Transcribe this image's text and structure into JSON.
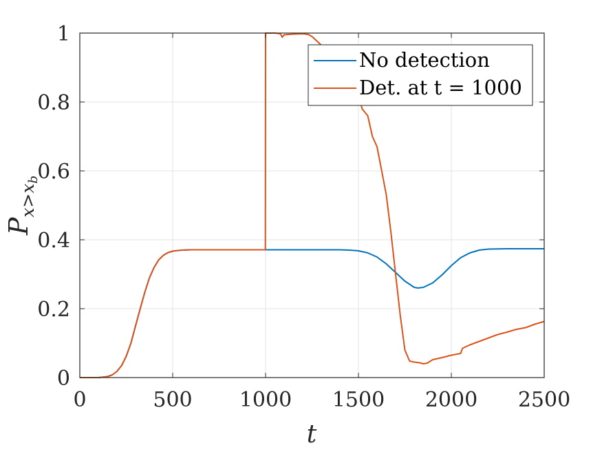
{
  "chart_data": {
    "type": "line",
    "title": "",
    "xlabel": "t",
    "ylabel": {
      "base": "P",
      "subscript": "x>x",
      "subsub": "b"
    },
    "xlim": [
      0,
      2500
    ],
    "ylim": [
      0,
      1
    ],
    "xticks": [
      0,
      500,
      1000,
      1500,
      2000,
      2500
    ],
    "yticks": [
      0,
      0.2,
      0.4,
      0.6,
      0.8,
      1
    ],
    "xtick_labels": [
      "0",
      "500",
      "1000",
      "1500",
      "2000",
      "2500"
    ],
    "ytick_labels": [
      "0",
      "0.2",
      "0.4",
      "0.6",
      "0.8",
      "1"
    ],
    "grid": true,
    "legend_position": "top-right",
    "series": [
      {
        "name": "No detection",
        "color": "#0072BD",
        "x": [
          0,
          100,
          150,
          175,
          200,
          225,
          250,
          275,
          300,
          325,
          350,
          375,
          400,
          425,
          450,
          475,
          500,
          550,
          600,
          650,
          700,
          800,
          1000,
          1200,
          1400,
          1450,
          1500,
          1550,
          1600,
          1650,
          1700,
          1750,
          1800,
          1820,
          1850,
          1900,
          1950,
          2000,
          2050,
          2100,
          2150,
          2200,
          2300,
          2500
        ],
        "y": [
          0,
          0,
          0.003,
          0.008,
          0.018,
          0.035,
          0.062,
          0.1,
          0.15,
          0.2,
          0.248,
          0.29,
          0.32,
          0.342,
          0.355,
          0.363,
          0.367,
          0.37,
          0.371,
          0.371,
          0.371,
          0.371,
          0.371,
          0.371,
          0.371,
          0.37,
          0.368,
          0.362,
          0.35,
          0.33,
          0.305,
          0.28,
          0.262,
          0.26,
          0.262,
          0.275,
          0.298,
          0.325,
          0.348,
          0.362,
          0.37,
          0.373,
          0.374,
          0.374
        ]
      },
      {
        "name": "Det. at t = 1000",
        "color": "#D95319",
        "x": [
          0,
          100,
          150,
          175,
          200,
          225,
          250,
          275,
          300,
          325,
          350,
          375,
          400,
          425,
          450,
          475,
          500,
          550,
          600,
          650,
          700,
          800,
          999,
          1000,
          1050,
          1080,
          1090,
          1100,
          1150,
          1200,
          1230,
          1250,
          1280,
          1300,
          1350,
          1400,
          1430,
          1450,
          1480,
          1500,
          1520,
          1550,
          1575,
          1600,
          1625,
          1650,
          1675,
          1700,
          1725,
          1750,
          1775,
          1800,
          1830,
          1850,
          1870,
          1900,
          1950,
          2000,
          2050,
          2060,
          2100,
          2150,
          2200,
          2250,
          2300,
          2350,
          2400,
          2450,
          2500
        ],
        "y": [
          0,
          0,
          0.003,
          0.008,
          0.018,
          0.035,
          0.062,
          0.1,
          0.15,
          0.2,
          0.248,
          0.29,
          0.32,
          0.342,
          0.355,
          0.363,
          0.367,
          0.37,
          0.371,
          0.371,
          0.371,
          0.371,
          0.371,
          1,
          1,
          0.998,
          0.988,
          0.995,
          0.997,
          0.998,
          0.996,
          0.99,
          0.975,
          0.965,
          0.94,
          0.915,
          0.9,
          0.88,
          0.85,
          0.82,
          0.78,
          0.76,
          0.7,
          0.67,
          0.6,
          0.53,
          0.42,
          0.3,
          0.18,
          0.08,
          0.048,
          0.045,
          0.043,
          0.04,
          0.042,
          0.052,
          0.058,
          0.065,
          0.07,
          0.085,
          0.095,
          0.105,
          0.115,
          0.125,
          0.132,
          0.14,
          0.145,
          0.155,
          0.163
        ]
      }
    ]
  }
}
